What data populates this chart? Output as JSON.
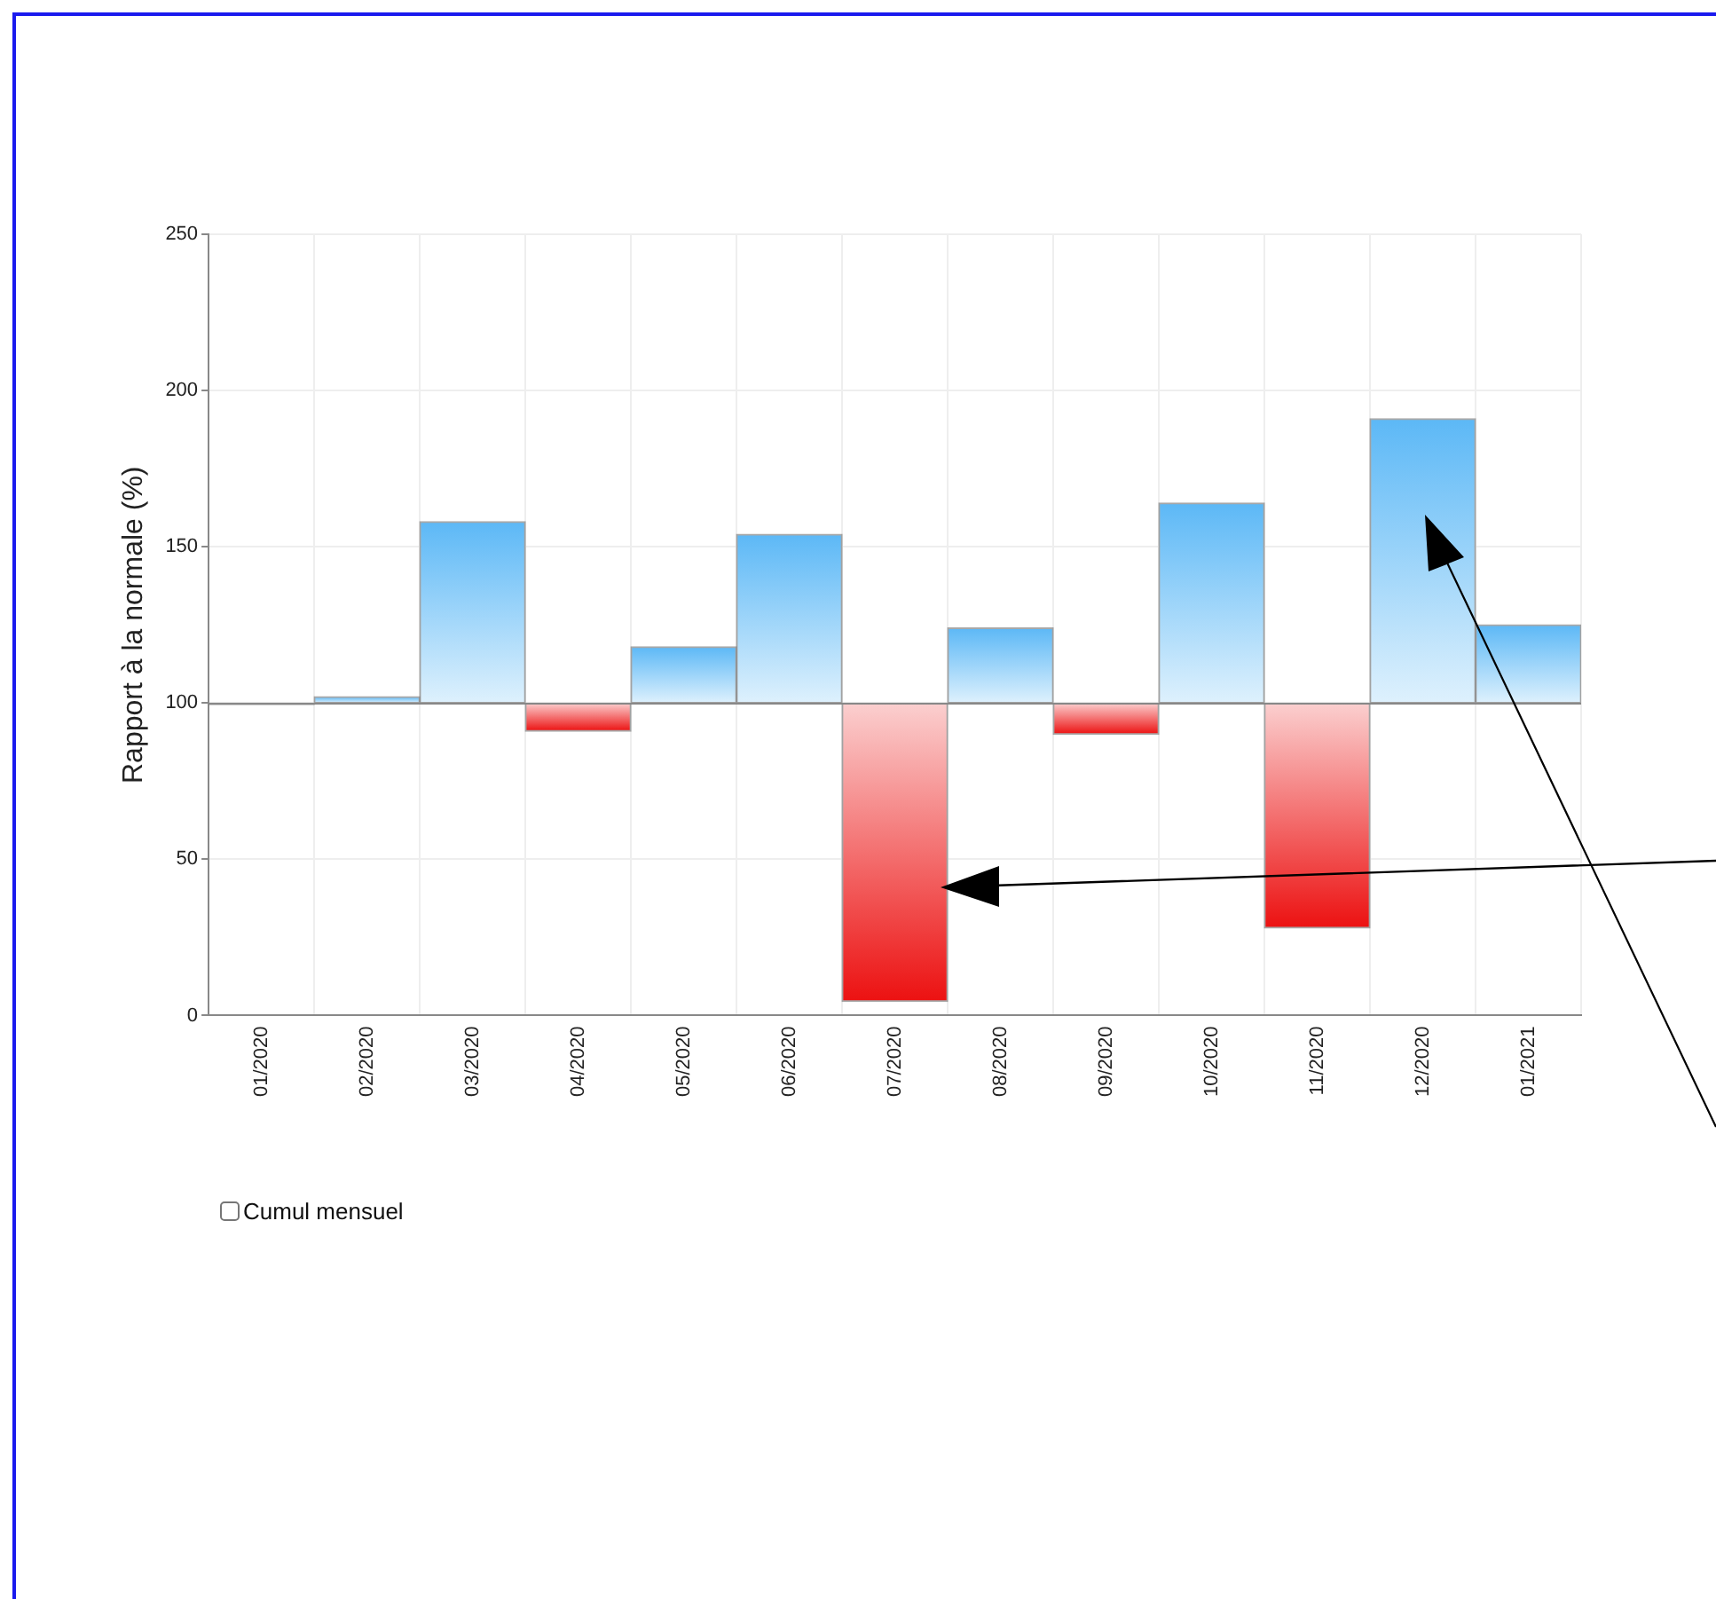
{
  "chart_data": {
    "type": "bar",
    "ylabel": "Rapport à la normale (%)",
    "categories": [
      "01/2020",
      "02/2020",
      "03/2020",
      "04/2020",
      "05/2020",
      "06/2020",
      "07/2020",
      "08/2020",
      "09/2020",
      "10/2020",
      "11/2020",
      "12/2020",
      "01/2021"
    ],
    "base": [
      100,
      100,
      100,
      100,
      100,
      100,
      100,
      100,
      100,
      100,
      100,
      100,
      100
    ],
    "values": [
      -0.5,
      2,
      58,
      -9,
      18,
      54,
      -95.5,
      24,
      -10,
      64,
      -72,
      91,
      25
    ],
    "colors": [
      "#ec1111",
      "#5cb8f6",
      "#5cb8f6",
      "#ec1111",
      "#5cb8f6",
      "#5cb8f6",
      "#ec1111",
      "#5cb8f6",
      "#ec1111",
      "#5cb8f6",
      "#ec1111",
      "#5cb8f6",
      "#5cb8f6"
    ],
    "ref_lines": [
      {
        "axis": "y",
        "value": 100,
        "color": "#888888"
      }
    ],
    "ylim": [
      0,
      250
    ],
    "yticks": [
      0,
      50,
      100,
      150,
      200,
      250
    ],
    "grid": true,
    "legend": false,
    "annotations": [
      "Cumul mensuel"
    ]
  }
}
